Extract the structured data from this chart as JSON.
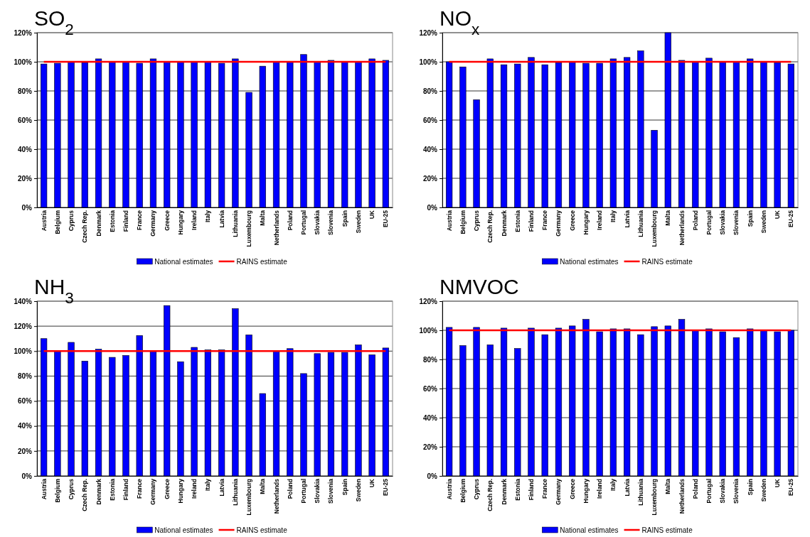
{
  "chart_data": [
    {
      "type": "bar",
      "title": "SO$_{2}$",
      "categories": [
        "Austria",
        "Belgium",
        "Cyprus",
        "Czech Rep.",
        "Denmark",
        "Estonia",
        "Finland",
        "France",
        "Germany",
        "Greece",
        "Hungary",
        "Ireland",
        "Italy",
        "Latvia",
        "Lithuania",
        "Luxembourg",
        "Malta",
        "Netherlands",
        "Poland",
        "Portugal",
        "Slovakia",
        "Slovenia",
        "Spain",
        "Sweden",
        "UK",
        "EU-25"
      ],
      "series": [
        {
          "name": "National estimates",
          "color": "#0000ff",
          "values": [
            98.5,
            99,
            100,
            99.5,
            102,
            100,
            100,
            99,
            102,
            100,
            100,
            100,
            100,
            99,
            102,
            79,
            97,
            100,
            100,
            105,
            100,
            101,
            100,
            100,
            102,
            101
          ]
        },
        {
          "name": "RAINS estimate",
          "type": "line",
          "color": "#ff0000",
          "values": [
            100,
            100,
            100,
            100,
            100,
            100,
            100,
            100,
            100,
            100,
            100,
            100,
            100,
            100,
            100,
            100,
            100,
            100,
            100,
            100,
            100,
            100,
            100,
            100,
            100,
            100
          ]
        }
      ],
      "ylim": [
        0,
        120
      ],
      "yticks": [
        {
          "value": 0,
          "label": "0%"
        },
        {
          "value": 20,
          "label": "20%"
        },
        {
          "value": 40,
          "label": "40%"
        },
        {
          "value": 60,
          "label": "60%"
        },
        {
          "value": 80,
          "label": "80%"
        },
        {
          "value": 100,
          "label": "100%"
        },
        {
          "value": 120,
          "label": "120%"
        }
      ],
      "grid": "y",
      "legend": "bottom"
    },
    {
      "type": "bar",
      "title": "NO$_{x}$",
      "categories": [
        "Austria",
        "Belgium",
        "Cyprus",
        "Czech Rep.",
        "Denmark",
        "Estonia",
        "Finland",
        "France",
        "Germany",
        "Greece",
        "Hungary",
        "Ireland",
        "Italy",
        "Latvia",
        "Lithuania",
        "Luxembourg",
        "Malta",
        "Netherlands",
        "Poland",
        "Portugal",
        "Slovakia",
        "Slovenia",
        "Spain",
        "Sweden",
        "UK",
        "EU-25"
      ],
      "series": [
        {
          "name": "National estimates",
          "color": "#0000ff",
          "values": [
            100,
            96.5,
            74,
            102,
            98,
            98.5,
            103,
            98,
            99.5,
            100,
            99,
            99,
            102,
            103,
            107.5,
            53,
            120,
            101,
            100,
            102.5,
            100,
            100,
            102,
            100,
            99.5,
            98.5
          ]
        },
        {
          "name": "RAINS estimate",
          "type": "line",
          "color": "#ff0000",
          "values": [
            100,
            100,
            100,
            100,
            100,
            100,
            100,
            100,
            100,
            100,
            100,
            100,
            100,
            100,
            100,
            100,
            100,
            100,
            100,
            100,
            100,
            100,
            100,
            100,
            100,
            100
          ]
        }
      ],
      "ylim": [
        0,
        120
      ],
      "yticks": [
        {
          "value": 0,
          "label": "0%"
        },
        {
          "value": 20,
          "label": "20%"
        },
        {
          "value": 40,
          "label": "40%"
        },
        {
          "value": 60,
          "label": "60%"
        },
        {
          "value": 80,
          "label": "80%"
        },
        {
          "value": 100,
          "label": "100%"
        },
        {
          "value": 120,
          "label": "120%"
        }
      ],
      "grid": "y",
      "legend": "bottom"
    },
    {
      "type": "bar",
      "title": "NH$_{3}$",
      "categories": [
        "Austria",
        "Belgium",
        "Cyprus",
        "Czech Rep.",
        "Denmark",
        "Estonia",
        "Finland",
        "France",
        "Germany",
        "Greece",
        "Hungary",
        "Ireland",
        "Italy",
        "Latvia",
        "Lithuania",
        "Luxembourg",
        "Malta",
        "Netherlands",
        "Poland",
        "Portugal",
        "Slovakia",
        "Slovenia",
        "Spain",
        "Sweden",
        "UK",
        "EU-25"
      ],
      "series": [
        {
          "name": "National estimates",
          "color": "#0000ff",
          "values": [
            110,
            100,
            107,
            92,
            101.5,
            95,
            96.5,
            112.5,
            100,
            136.5,
            91.5,
            103,
            101,
            101,
            134,
            113,
            66,
            100,
            102,
            82,
            98,
            99,
            99,
            105,
            97,
            102.5
          ]
        },
        {
          "name": "RAINS estimate",
          "type": "line",
          "color": "#ff0000",
          "values": [
            100,
            100,
            100,
            100,
            100,
            100,
            100,
            100,
            100,
            100,
            100,
            100,
            100,
            100,
            100,
            100,
            100,
            100,
            100,
            100,
            100,
            100,
            100,
            100,
            100,
            100
          ]
        }
      ],
      "ylim": [
        0,
        140
      ],
      "yticks": [
        {
          "value": 0,
          "label": "0%"
        },
        {
          "value": 20,
          "label": "20%"
        },
        {
          "value": 40,
          "label": "40%"
        },
        {
          "value": 60,
          "label": "60%"
        },
        {
          "value": 80,
          "label": "80%"
        },
        {
          "value": 100,
          "label": "100%"
        },
        {
          "value": 120,
          "label": "120%"
        },
        {
          "value": 140,
          "label": "140%"
        }
      ],
      "grid": "y",
      "legend": "bottom"
    },
    {
      "type": "bar",
      "title": "NMVOC",
      "categories": [
        "Austria",
        "Belgium",
        "Cyprus",
        "Czech Rep.",
        "Denmark",
        "Estonia",
        "Finland",
        "France",
        "Germany",
        "Greece",
        "Hungary",
        "Ireland",
        "Italy",
        "Latvia",
        "Lithuania",
        "Luxembourg",
        "Malta",
        "Netherlands",
        "Poland",
        "Portugal",
        "Slovakia",
        "Slovenia",
        "Spain",
        "Sweden",
        "UK",
        "EU-25"
      ],
      "series": [
        {
          "name": "National estimates",
          "color": "#0000ff",
          "values": [
            102,
            89.5,
            102,
            90,
            101.5,
            87.5,
            101.5,
            97,
            101.5,
            103,
            107.5,
            99,
            101,
            101,
            97,
            102.5,
            103,
            107.5,
            100,
            101,
            99,
            95,
            101,
            100,
            99,
            100
          ]
        },
        {
          "name": "RAINS estimate",
          "type": "line",
          "color": "#ff0000",
          "values": [
            100,
            100,
            100,
            100,
            100,
            100,
            100,
            100,
            100,
            100,
            100,
            100,
            100,
            100,
            100,
            100,
            100,
            100,
            100,
            100,
            100,
            100,
            100,
            100,
            100,
            100
          ]
        }
      ],
      "ylim": [
        0,
        120
      ],
      "yticks": [
        {
          "value": 0,
          "label": "0%"
        },
        {
          "value": 20,
          "label": "20%"
        },
        {
          "value": 40,
          "label": "40%"
        },
        {
          "value": 60,
          "label": "60%"
        },
        {
          "value": 80,
          "label": "80%"
        },
        {
          "value": 100,
          "label": "100%"
        },
        {
          "value": 120,
          "label": "120%"
        }
      ],
      "grid": "y",
      "legend": "bottom"
    }
  ]
}
